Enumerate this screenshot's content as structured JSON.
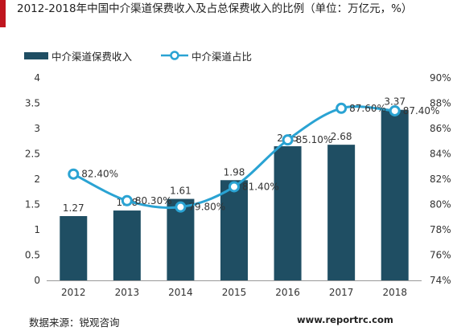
{
  "header": {
    "title": "2012-2018年中国中介渠道保费收入及占总保费收入的比例（单位：万亿元，%）",
    "accent_color": "#c0161f"
  },
  "legend": {
    "bar_label": "中介渠道保费收入",
    "line_label": "中介渠道占比"
  },
  "footer": {
    "source": "数据来源：锐观咨询",
    "website": "www.reportrc.com"
  },
  "chart_data": {
    "type": "bar",
    "categories": [
      "2012",
      "2013",
      "2014",
      "2015",
      "2016",
      "2017",
      "2018"
    ],
    "series": [
      {
        "name": "中介渠道保费收入",
        "type": "bar",
        "axis": "left",
        "color": "#1f4e63",
        "values": [
          1.27,
          1.38,
          1.61,
          1.98,
          2.65,
          2.68,
          3.37
        ],
        "labels": [
          "1.27",
          "1.38",
          "1.61",
          "1.98",
          "2.65",
          "2.68",
          "3.37"
        ]
      },
      {
        "name": "中介渠道占比",
        "type": "line",
        "axis": "right",
        "color": "#2aa3d3",
        "values": [
          82.4,
          80.3,
          79.8,
          81.4,
          85.1,
          87.6,
          87.4
        ],
        "labels": [
          "82.40%",
          "80.30%",
          "79.80%",
          "81.40%",
          "85.10%",
          "87.60%",
          "87.40%"
        ]
      }
    ],
    "y_left": {
      "ylim": [
        0,
        4
      ],
      "ticks": [
        "0",
        "0.5",
        "1",
        "1.5",
        "2",
        "2.5",
        "3",
        "3.5",
        "4"
      ]
    },
    "y_right": {
      "ylim": [
        74,
        90
      ],
      "ticks": [
        "74%",
        "76%",
        "78%",
        "80%",
        "82%",
        "84%",
        "86%",
        "88%",
        "90%"
      ]
    },
    "grid": false,
    "legend_position": "top-left"
  }
}
